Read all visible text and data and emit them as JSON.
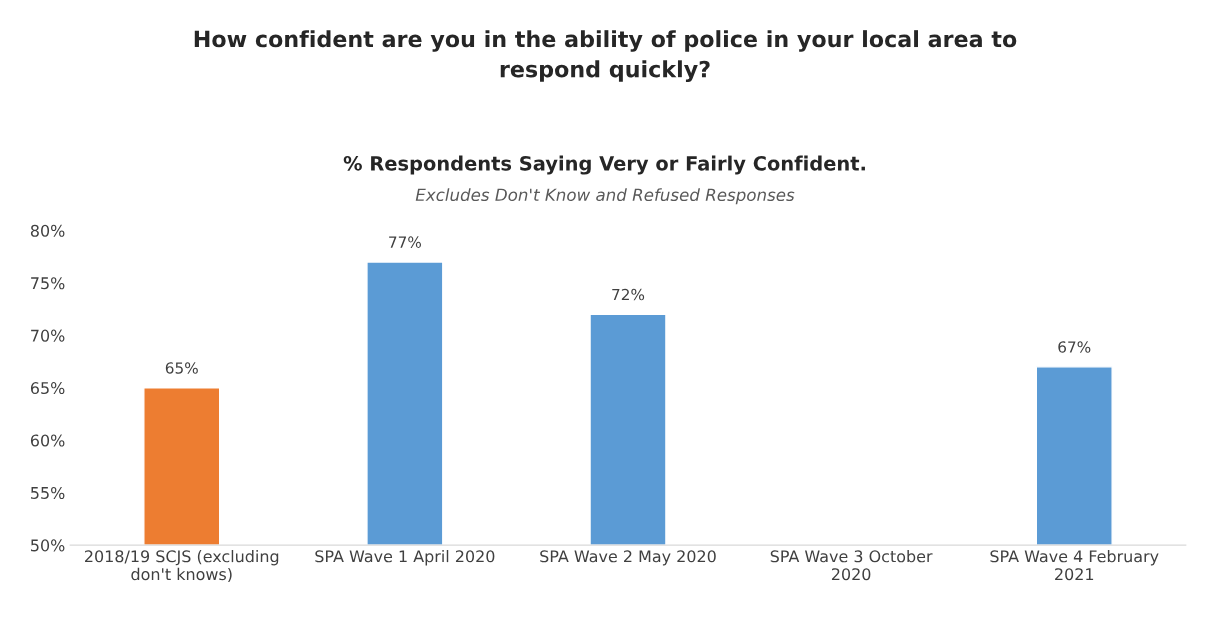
{
  "chart_data": {
    "type": "bar",
    "title": "How confident are you in the ability of police in your local area to\nrespond quickly?",
    "subtitle": "% Respondents Saying Very or Fairly Confident.",
    "annotations": [
      "Excludes Don't Know and Refused Responses"
    ],
    "categories": [
      "2018/19 SCJS (excluding\ndon't knows)",
      "SPA Wave 1 April 2020",
      "SPA Wave 2 May 2020",
      "SPA Wave 3 October\n2020",
      "SPA Wave 4 February\n2021"
    ],
    "values": [
      65,
      77,
      72,
      null,
      67
    ],
    "colors": [
      "#ed7d31",
      "#5b9bd5",
      "#5b9bd5",
      "#5b9bd5",
      "#5b9bd5"
    ],
    "value_labels": [
      "65%",
      "77%",
      "72%",
      null,
      "67%"
    ],
    "ylim": [
      50,
      80
    ],
    "yticks": [
      {
        "value": 50,
        "label": "50%"
      },
      {
        "value": 55,
        "label": "55%"
      },
      {
        "value": 60,
        "label": "60%"
      },
      {
        "value": 65,
        "label": "65%"
      },
      {
        "value": 70,
        "label": "70%"
      },
      {
        "value": 75,
        "label": "75%"
      },
      {
        "value": 80,
        "label": "80%"
      }
    ],
    "grid": false,
    "legend": false
  }
}
